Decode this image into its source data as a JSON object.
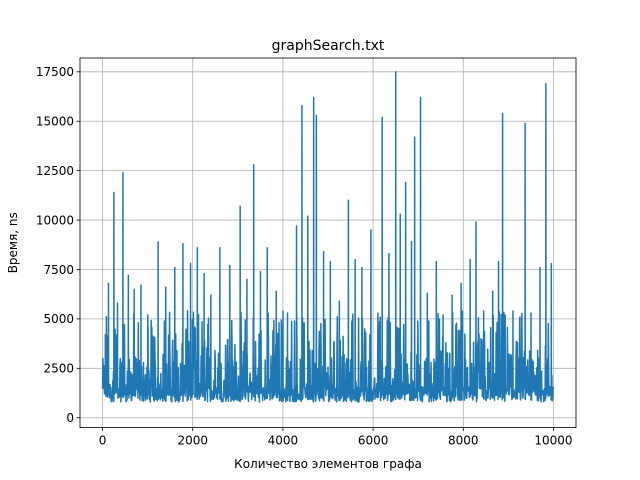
{
  "chart_data": {
    "type": "line",
    "title": "graphSearch.txt",
    "xlabel": "Количество элементов графа",
    "ylabel": "Время, ns",
    "xlim": [
      -500,
      10500
    ],
    "ylim": [
      -500,
      18200
    ],
    "xticks": [
      0,
      2000,
      4000,
      6000,
      8000,
      10000
    ],
    "yticks": [
      0,
      2500,
      5000,
      7500,
      10000,
      12500,
      15000,
      17500
    ],
    "grid": true,
    "series": [
      {
        "color": "#1f77b4",
        "x_range": [
          0,
          10000
        ],
        "baseline_band": [
          800,
          3000
        ],
        "spikes": [
          {
            "x": 60,
            "y": 4200
          },
          {
            "x": 130,
            "y": 6800
          },
          {
            "x": 250,
            "y": 11400
          },
          {
            "x": 330,
            "y": 5800
          },
          {
            "x": 450,
            "y": 12400
          },
          {
            "x": 570,
            "y": 7200
          },
          {
            "x": 700,
            "y": 6500
          },
          {
            "x": 850,
            "y": 6700
          },
          {
            "x": 1000,
            "y": 5200
          },
          {
            "x": 1230,
            "y": 8900
          },
          {
            "x": 1400,
            "y": 6600
          },
          {
            "x": 1600,
            "y": 7600
          },
          {
            "x": 1780,
            "y": 8800
          },
          {
            "x": 1950,
            "y": 7800
          },
          {
            "x": 2100,
            "y": 8600
          },
          {
            "x": 2250,
            "y": 7300
          },
          {
            "x": 2400,
            "y": 6200
          },
          {
            "x": 2600,
            "y": 8600
          },
          {
            "x": 2820,
            "y": 7700
          },
          {
            "x": 3050,
            "y": 10700
          },
          {
            "x": 3200,
            "y": 7000
          },
          {
            "x": 3350,
            "y": 12800
          },
          {
            "x": 3500,
            "y": 7400
          },
          {
            "x": 3650,
            "y": 8600
          },
          {
            "x": 3850,
            "y": 6400
          },
          {
            "x": 4000,
            "y": 5400
          },
          {
            "x": 4100,
            "y": 5300
          },
          {
            "x": 4300,
            "y": 9700
          },
          {
            "x": 4420,
            "y": 15800
          },
          {
            "x": 4550,
            "y": 10200
          },
          {
            "x": 4680,
            "y": 16200
          },
          {
            "x": 4740,
            "y": 15300
          },
          {
            "x": 4900,
            "y": 8400
          },
          {
            "x": 5050,
            "y": 7900
          },
          {
            "x": 5250,
            "y": 5900
          },
          {
            "x": 5450,
            "y": 11000
          },
          {
            "x": 5600,
            "y": 8000
          },
          {
            "x": 5750,
            "y": 7600
          },
          {
            "x": 5950,
            "y": 9500
          },
          {
            "x": 6200,
            "y": 15200
          },
          {
            "x": 6350,
            "y": 8300
          },
          {
            "x": 6500,
            "y": 17500
          },
          {
            "x": 6600,
            "y": 10300
          },
          {
            "x": 6720,
            "y": 11900
          },
          {
            "x": 6850,
            "y": 8900
          },
          {
            "x": 6920,
            "y": 14200
          },
          {
            "x": 7050,
            "y": 16200
          },
          {
            "x": 7200,
            "y": 6300
          },
          {
            "x": 7400,
            "y": 7900
          },
          {
            "x": 7550,
            "y": 5200
          },
          {
            "x": 7750,
            "y": 6200
          },
          {
            "x": 7950,
            "y": 6800
          },
          {
            "x": 8150,
            "y": 8000
          },
          {
            "x": 8280,
            "y": 9900
          },
          {
            "x": 8450,
            "y": 5400
          },
          {
            "x": 8650,
            "y": 6400
          },
          {
            "x": 8780,
            "y": 7900
          },
          {
            "x": 8870,
            "y": 15400
          },
          {
            "x": 9100,
            "y": 5400
          },
          {
            "x": 9200,
            "y": 3800
          },
          {
            "x": 9370,
            "y": 14900
          },
          {
            "x": 9500,
            "y": 5300
          },
          {
            "x": 9700,
            "y": 7600
          },
          {
            "x": 9830,
            "y": 16900
          },
          {
            "x": 9950,
            "y": 7800
          }
        ]
      }
    ]
  }
}
